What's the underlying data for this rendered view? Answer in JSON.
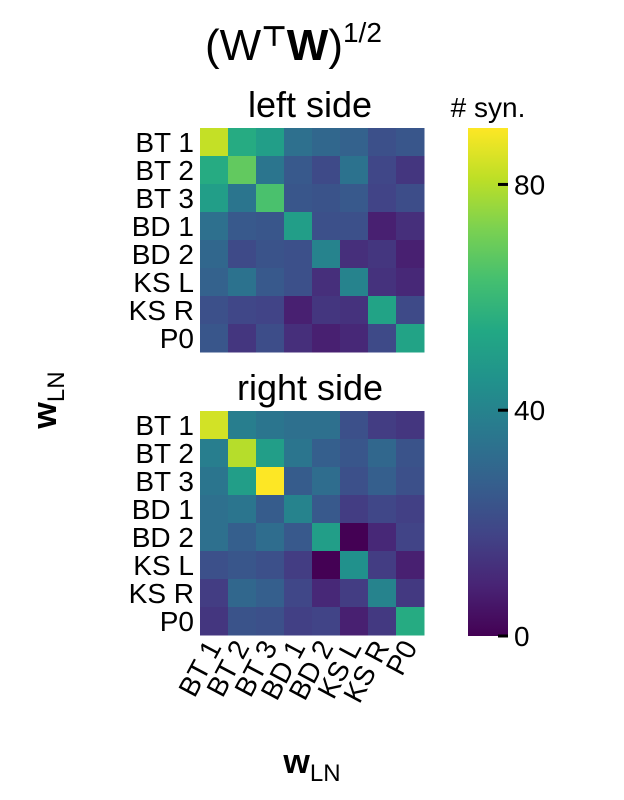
{
  "title": "(W⊤W)1/2",
  "title_parts": {
    "open": "(W",
    "top": "⊤",
    "w": "W",
    "close": ")",
    "sup": "1/2"
  },
  "axes": {
    "ylabel": {
      "main": "w",
      "sub": "LN"
    },
    "xlabel": {
      "main": "w",
      "sub": "LN"
    }
  },
  "colorbar": {
    "label": "# syn.",
    "ticks": [
      "0",
      "40",
      "80"
    ],
    "tick_values": [
      0,
      40,
      80
    ],
    "range": [
      0,
      90
    ],
    "colormap": "viridis"
  },
  "chart_data": [
    {
      "type": "heatmap",
      "title": "left side",
      "labels": [
        "BT 1",
        "BT 2",
        "BT 3",
        "BD 1",
        "BD 2",
        "KS L",
        "KS R",
        "P0"
      ],
      "vlim": [
        0,
        90
      ],
      "values": [
        [
          82,
          55,
          50,
          33,
          30,
          28,
          22,
          24
        ],
        [
          55,
          68,
          35,
          25,
          20,
          34,
          19,
          14
        ],
        [
          50,
          35,
          64,
          24,
          23,
          25,
          18,
          21
        ],
        [
          33,
          25,
          24,
          50,
          22,
          22,
          8,
          12
        ],
        [
          30,
          20,
          23,
          22,
          40,
          12,
          14,
          8
        ],
        [
          28,
          34,
          25,
          22,
          12,
          40,
          13,
          10
        ],
        [
          22,
          19,
          18,
          8,
          14,
          13,
          52,
          20
        ],
        [
          24,
          14,
          21,
          12,
          8,
          10,
          20,
          52
        ]
      ]
    },
    {
      "type": "heatmap",
      "title": "right side",
      "labels": [
        "BT 1",
        "BT 2",
        "BT 3",
        "BD 1",
        "BD 2",
        "KS L",
        "KS R",
        "P0"
      ],
      "vlim": [
        0,
        90
      ],
      "values": [
        [
          84,
          38,
          35,
          33,
          33,
          22,
          16,
          14
        ],
        [
          38,
          80,
          50,
          35,
          27,
          24,
          30,
          23
        ],
        [
          35,
          50,
          90,
          26,
          32,
          22,
          27,
          22
        ],
        [
          33,
          35,
          26,
          40,
          25,
          16,
          19,
          17
        ],
        [
          33,
          27,
          32,
          25,
          50,
          0,
          10,
          18
        ],
        [
          22,
          24,
          22,
          16,
          0,
          45,
          16,
          8
        ],
        [
          16,
          30,
          27,
          19,
          10,
          16,
          40,
          15
        ],
        [
          14,
          23,
          22,
          17,
          18,
          8,
          15,
          55
        ]
      ]
    }
  ]
}
